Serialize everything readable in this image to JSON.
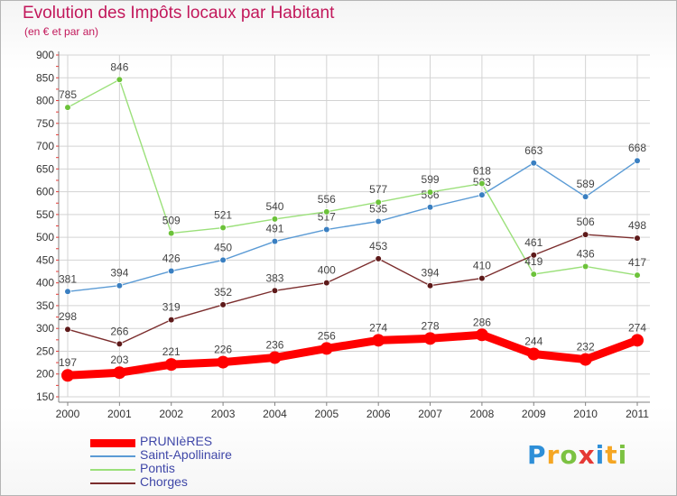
{
  "header": {
    "title": "Evolution des Impôts locaux par Habitant",
    "subtitle": "(en € et par an)"
  },
  "colors": {
    "title": "#c2185b",
    "grid": "#d3d3d3",
    "axis": "#808080",
    "tick_red": "#e53935",
    "legend_text": "#3f47a8"
  },
  "logo": {
    "text": "Proxiti",
    "letters": [
      {
        "ch": "P",
        "color": "#2e8fd8"
      },
      {
        "ch": "r",
        "color": "#f5a623"
      },
      {
        "ch": "o",
        "color": "#7cc242"
      },
      {
        "ch": "x",
        "color": "#e53935"
      },
      {
        "ch": "i",
        "color": "#2e8fd8"
      },
      {
        "ch": "t",
        "color": "#f5a623"
      },
      {
        "ch": "i",
        "color": "#7cc242"
      }
    ]
  },
  "chart_data": {
    "type": "line",
    "title": "Evolution des Impôts locaux par Habitant",
    "subtitle": "(en € et par an)",
    "xlabel": "",
    "ylabel": "",
    "x": [
      "2000",
      "2001",
      "2002",
      "2003",
      "2004",
      "2005",
      "2006",
      "2007",
      "2008",
      "2009",
      "2010",
      "2011"
    ],
    "ylim": [
      150,
      900
    ],
    "yticks": [
      150,
      200,
      250,
      300,
      350,
      400,
      450,
      500,
      550,
      600,
      650,
      700,
      750,
      800,
      850,
      900
    ],
    "grid": true,
    "legend_position": "bottom-left",
    "series": [
      {
        "name": "Saint-Apollinaire",
        "color": "#5b9bd5",
        "marker": "#3a7fc1",
        "values": [
          381,
          394,
          426,
          450,
          491,
          517,
          535,
          566,
          593,
          663,
          589,
          668
        ],
        "labels": [
          "381",
          "394",
          "426",
          "450",
          "491",
          "517",
          "535",
          "566",
          "593",
          "663",
          "589",
          "668"
        ],
        "emphasis": false
      },
      {
        "name": "Pontis",
        "color": "#9be07a",
        "marker": "#6cc23a",
        "values": [
          785,
          846,
          509,
          521,
          540,
          556,
          577,
          599,
          618,
          419,
          436,
          417
        ],
        "labels": [
          "785",
          "846",
          "509",
          "521",
          "540",
          "556",
          "577",
          "599",
          "618",
          "419",
          "436",
          "417"
        ],
        "emphasis": false
      },
      {
        "name": "Chorges",
        "color": "#7b2d2d",
        "marker": "#5e1a1a",
        "values": [
          298,
          266,
          319,
          352,
          383,
          400,
          453,
          394,
          410,
          461,
          506,
          498
        ],
        "labels": [
          "298",
          "266",
          "319",
          "352",
          "383",
          "400",
          "453",
          "394",
          "410",
          "461",
          "506",
          "498"
        ],
        "emphasis": false
      },
      {
        "name": "PRUNIèRES",
        "color": "#ff0000",
        "marker": "#ff0000",
        "values": [
          197,
          203,
          221,
          226,
          236,
          256,
          274,
          278,
          286,
          244,
          232,
          274
        ],
        "labels": [
          "197",
          "203",
          "221",
          "226",
          "236",
          "256",
          "274",
          "278",
          "286",
          "244",
          "232",
          "274"
        ],
        "emphasis": true
      }
    ],
    "legend_order": [
      "PRUNIèRES",
      "Saint-Apollinaire",
      "Pontis",
      "Chorges"
    ]
  }
}
